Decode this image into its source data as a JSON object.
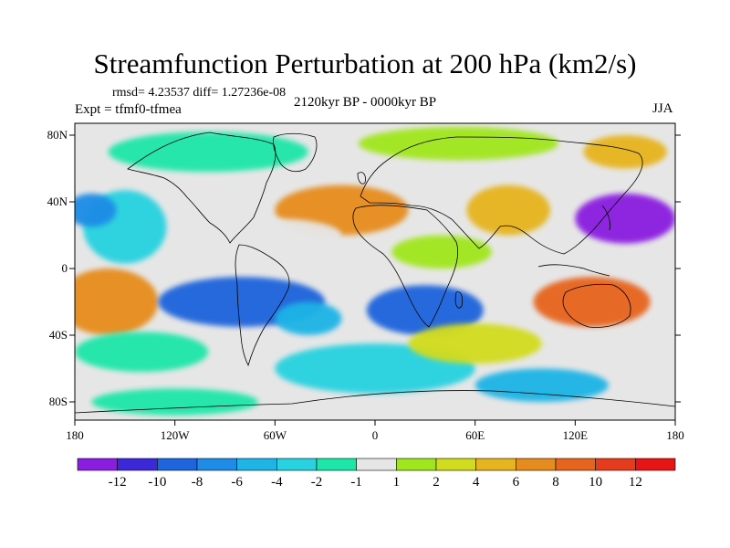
{
  "title": "Streamfunction Perturbation at 200 hPa (km2/s)",
  "stats": "rmsd= 4.23537 diff= 1.27236e-08",
  "period": "2120kyr BP - 0000kyr BP",
  "experiment": "Expt = tfmf0-tfmea",
  "season": "JJA",
  "axes": {
    "y_ticks": [
      "80N",
      "40N",
      "0",
      "40S",
      "80S"
    ],
    "x_ticks": [
      "180",
      "120W",
      "60W",
      "0",
      "60E",
      "120E",
      "180"
    ]
  },
  "colorbar": {
    "labels": [
      "-12",
      "-10",
      "-8",
      "-6",
      "-4",
      "-2",
      "-1",
      "1",
      "2",
      "4",
      "6",
      "8",
      "10",
      "12"
    ],
    "colors": [
      "#8a1ee0",
      "#3c28d8",
      "#1e64dc",
      "#1e8ce6",
      "#1eb4e6",
      "#28d2e0",
      "#1ee6a8",
      "#e6e6e6",
      "#a0e61e",
      "#d2dc1e",
      "#e6b41e",
      "#e68c1e",
      "#e6641e",
      "#e63c1e",
      "#e61414"
    ]
  },
  "field_blobs": [
    {
      "lon": -150,
      "lat": 25,
      "rx": 25,
      "ry": 22,
      "level": 5
    },
    {
      "lon": -170,
      "lat": 35,
      "rx": 15,
      "ry": 10,
      "level": 3
    },
    {
      "lon": -160,
      "lat": -20,
      "rx": 30,
      "ry": 20,
      "level": 11
    },
    {
      "lon": -80,
      "lat": -20,
      "rx": 50,
      "ry": 15,
      "level": 2
    },
    {
      "lon": -40,
      "lat": -30,
      "rx": 20,
      "ry": 10,
      "level": 4
    },
    {
      "lon": 30,
      "lat": -25,
      "rx": 35,
      "ry": 15,
      "level": 2
    },
    {
      "lon": -20,
      "lat": 35,
      "rx": 40,
      "ry": 15,
      "level": 11
    },
    {
      "lon": 80,
      "lat": 35,
      "rx": 25,
      "ry": 15,
      "level": 10
    },
    {
      "lon": 150,
      "lat": 30,
      "rx": 30,
      "ry": 15,
      "level": 0
    },
    {
      "lon": 130,
      "lat": -20,
      "rx": 35,
      "ry": 15,
      "level": 12
    },
    {
      "lon": -100,
      "lat": 70,
      "rx": 60,
      "ry": 12,
      "level": 6
    },
    {
      "lon": 50,
      "lat": 75,
      "rx": 60,
      "ry": 10,
      "level": 8
    },
    {
      "lon": 150,
      "lat": 70,
      "rx": 25,
      "ry": 10,
      "level": 10
    },
    {
      "lon": -60,
      "lat": 20,
      "rx": 40,
      "ry": 10,
      "level": 7
    },
    {
      "lon": 40,
      "lat": 10,
      "rx": 30,
      "ry": 10,
      "level": 8
    },
    {
      "lon": -140,
      "lat": -50,
      "rx": 40,
      "ry": 12,
      "level": 6
    },
    {
      "lon": 0,
      "lat": -60,
      "rx": 60,
      "ry": 15,
      "level": 5
    },
    {
      "lon": 100,
      "lat": -70,
      "rx": 40,
      "ry": 10,
      "level": 4
    },
    {
      "lon": -120,
      "lat": -80,
      "rx": 50,
      "ry": 8,
      "level": 6
    },
    {
      "lon": 60,
      "lat": -45,
      "rx": 40,
      "ry": 12,
      "level": 9
    }
  ]
}
